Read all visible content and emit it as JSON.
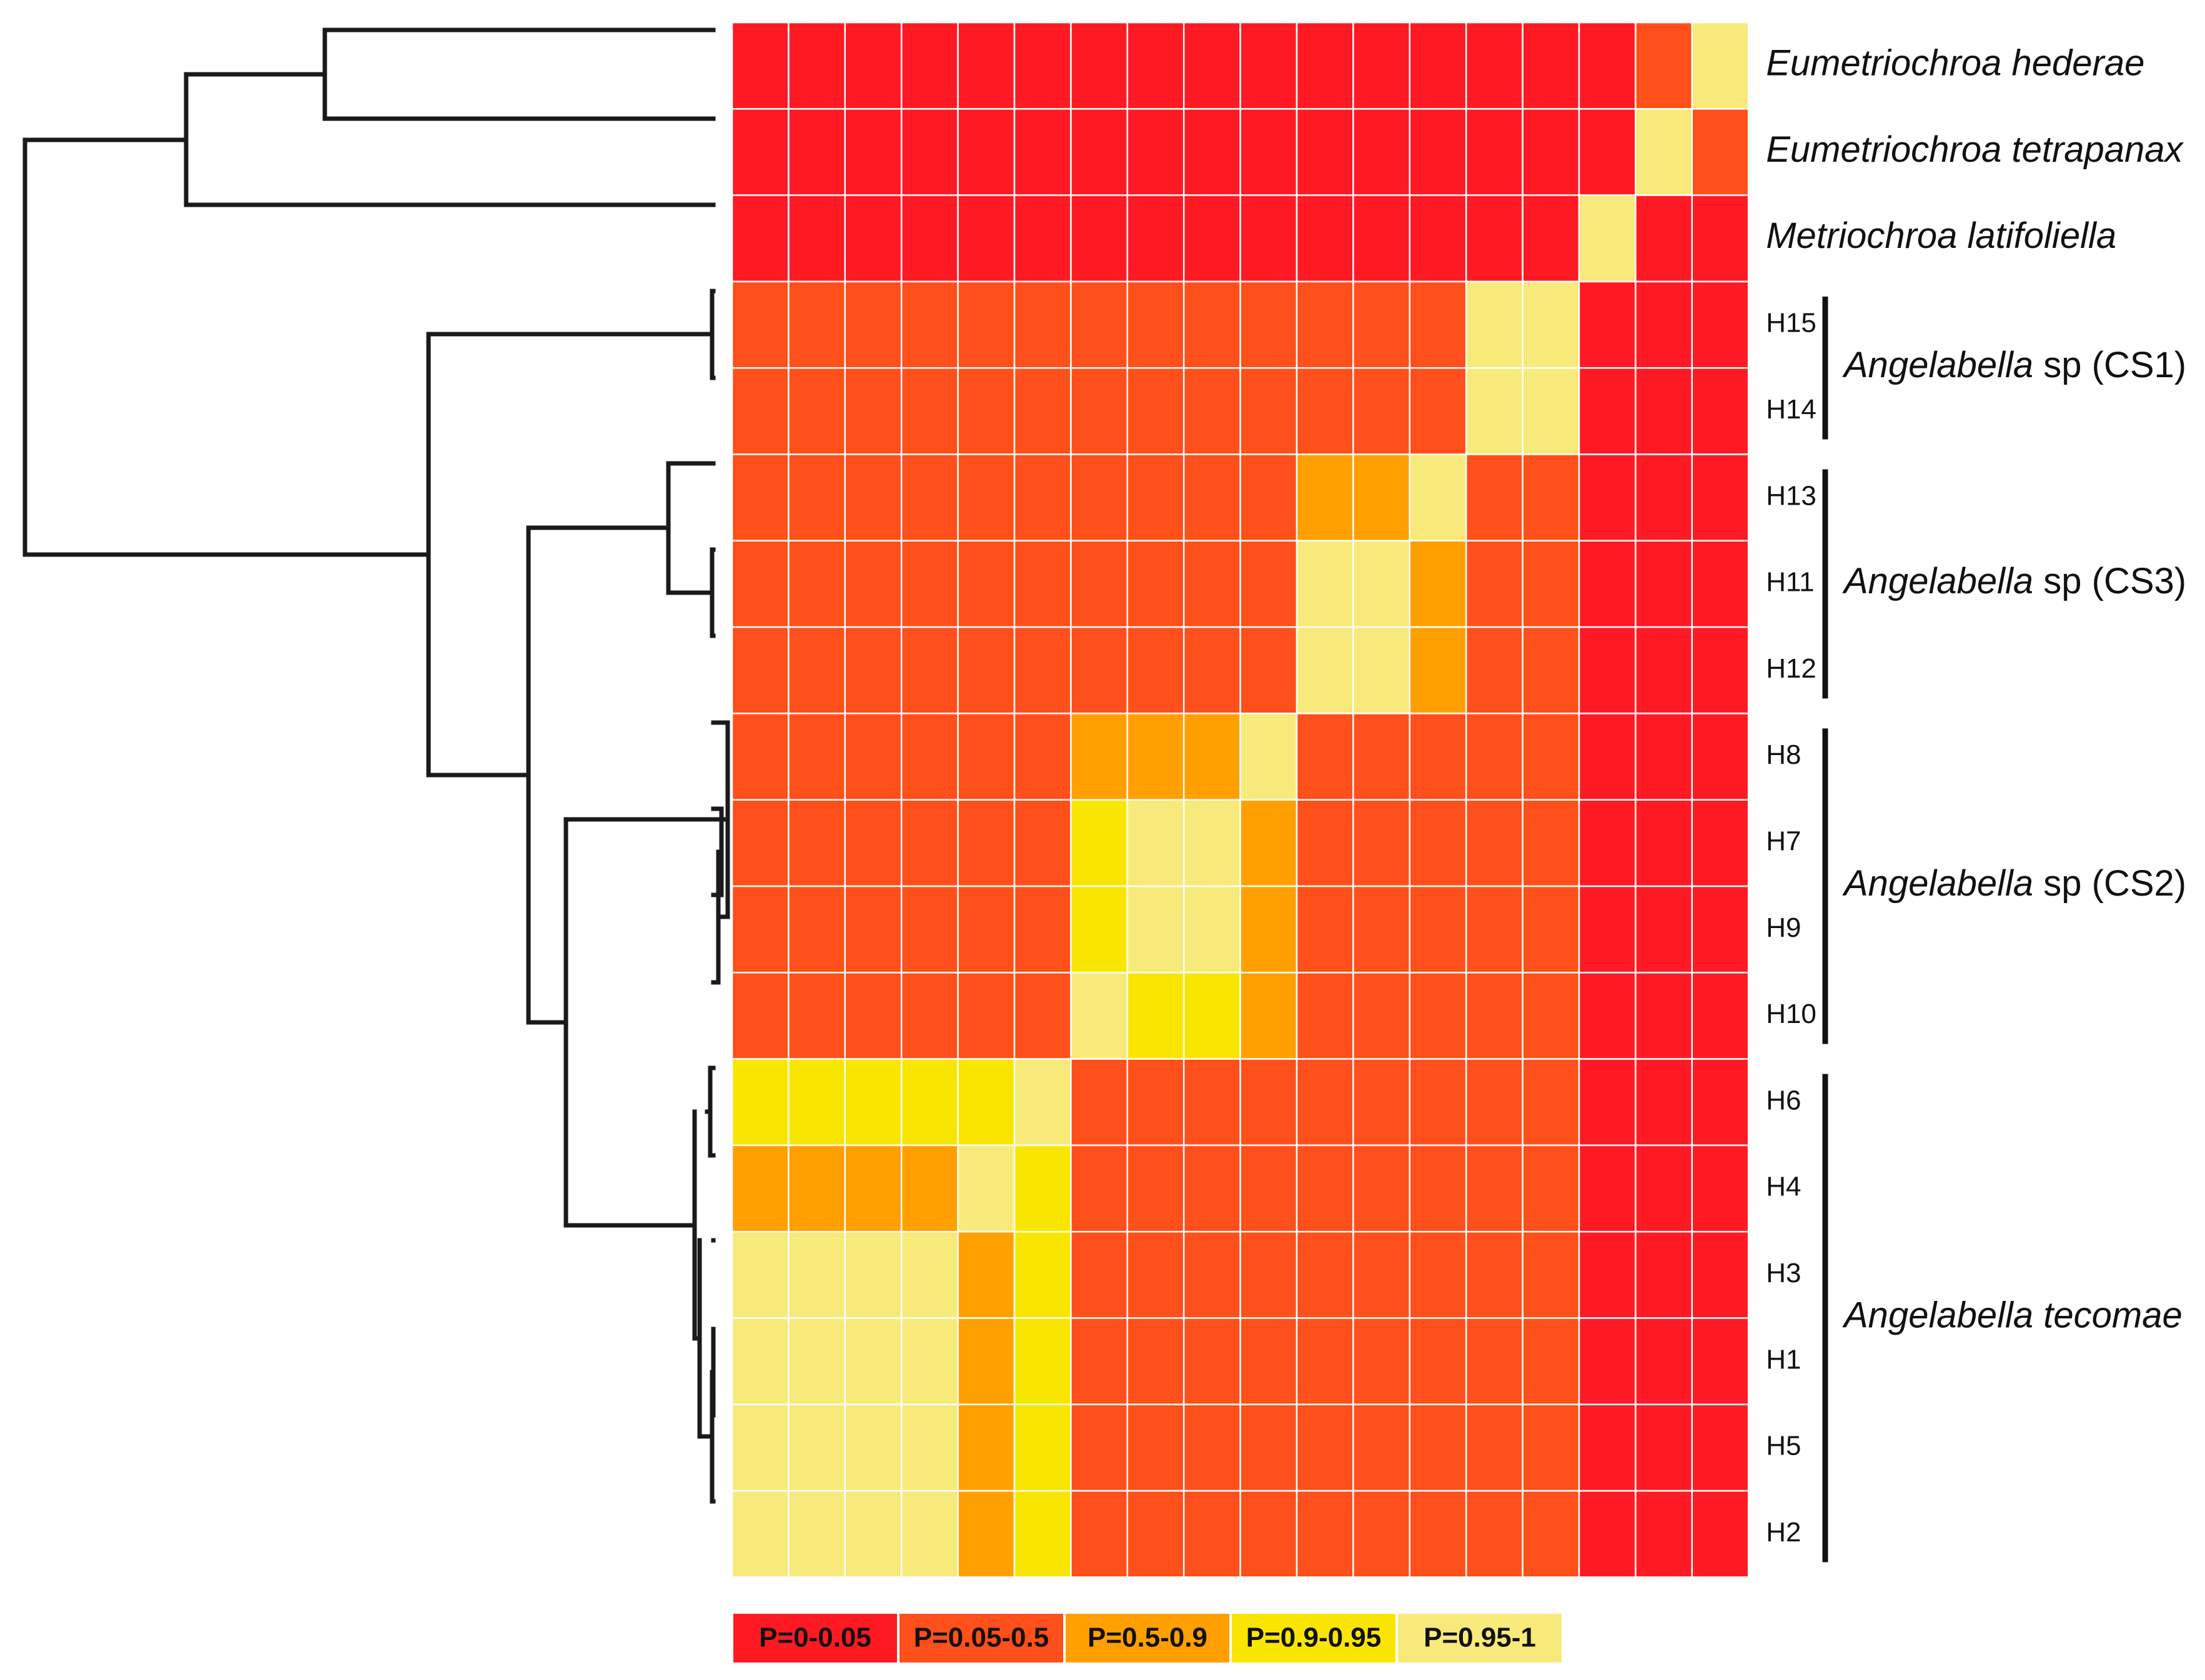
{
  "chart_data": {
    "type": "heatmap",
    "title": "",
    "colors": {
      "0": "#ff1a23",
      "1": "#ff4f1a",
      "2": "#ffa000",
      "3": "#f9e600",
      "4": "#f8ea7a"
    },
    "legend": [
      {
        "class": 0,
        "label": "P=0-0.05"
      },
      {
        "class": 1,
        "label": "P=0.05-0.5"
      },
      {
        "class": 2,
        "label": "P=0.5-0.9"
      },
      {
        "class": 3,
        "label": "P=0.9-0.95"
      },
      {
        "class": 4,
        "label": "P=0.95-1"
      }
    ],
    "rows": [
      {
        "label": "",
        "species": "Eumetriochroa hederae"
      },
      {
        "label": "",
        "species": "Eumetriochroa tetrapanax"
      },
      {
        "label": "",
        "species": "Metriochroa latifoliella"
      },
      {
        "label": "H15"
      },
      {
        "label": "H14"
      },
      {
        "label": "H13"
      },
      {
        "label": "H11"
      },
      {
        "label": "H12"
      },
      {
        "label": "H8"
      },
      {
        "label": "H7"
      },
      {
        "label": "H9"
      },
      {
        "label": "H10"
      },
      {
        "label": "H6"
      },
      {
        "label": "H4"
      },
      {
        "label": "H3"
      },
      {
        "label": "H1"
      },
      {
        "label": "H5"
      },
      {
        "label": "H2"
      }
    ],
    "matrix": [
      [
        0,
        0,
        0,
        0,
        0,
        0,
        0,
        0,
        0,
        0,
        0,
        0,
        0,
        0,
        0,
        0,
        1,
        4
      ],
      [
        0,
        0,
        0,
        0,
        0,
        0,
        0,
        0,
        0,
        0,
        0,
        0,
        0,
        0,
        0,
        0,
        4,
        1
      ],
      [
        0,
        0,
        0,
        0,
        0,
        0,
        0,
        0,
        0,
        0,
        0,
        0,
        0,
        0,
        0,
        4,
        0,
        0
      ],
      [
        1,
        1,
        1,
        1,
        1,
        1,
        1,
        1,
        1,
        1,
        1,
        1,
        1,
        4,
        4,
        0,
        0,
        0
      ],
      [
        1,
        1,
        1,
        1,
        1,
        1,
        1,
        1,
        1,
        1,
        1,
        1,
        1,
        4,
        4,
        0,
        0,
        0
      ],
      [
        1,
        1,
        1,
        1,
        1,
        1,
        1,
        1,
        1,
        1,
        2,
        2,
        4,
        1,
        1,
        0,
        0,
        0
      ],
      [
        1,
        1,
        1,
        1,
        1,
        1,
        1,
        1,
        1,
        1,
        4,
        4,
        2,
        1,
        1,
        0,
        0,
        0
      ],
      [
        1,
        1,
        1,
        1,
        1,
        1,
        1,
        1,
        1,
        1,
        4,
        4,
        2,
        1,
        1,
        0,
        0,
        0
      ],
      [
        1,
        1,
        1,
        1,
        1,
        1,
        2,
        2,
        2,
        4,
        1,
        1,
        1,
        1,
        1,
        0,
        0,
        0
      ],
      [
        1,
        1,
        1,
        1,
        1,
        1,
        3,
        4,
        4,
        2,
        1,
        1,
        1,
        1,
        1,
        0,
        0,
        0
      ],
      [
        1,
        1,
        1,
        1,
        1,
        1,
        3,
        4,
        4,
        2,
        1,
        1,
        1,
        1,
        1,
        0,
        0,
        0
      ],
      [
        1,
        1,
        1,
        1,
        1,
        1,
        4,
        3,
        3,
        2,
        1,
        1,
        1,
        1,
        1,
        0,
        0,
        0
      ],
      [
        3,
        3,
        3,
        3,
        3,
        4,
        1,
        1,
        1,
        1,
        1,
        1,
        1,
        1,
        1,
        0,
        0,
        0
      ],
      [
        2,
        2,
        2,
        2,
        4,
        3,
        1,
        1,
        1,
        1,
        1,
        1,
        1,
        1,
        1,
        0,
        0,
        0
      ],
      [
        4,
        4,
        4,
        4,
        2,
        3,
        1,
        1,
        1,
        1,
        1,
        1,
        1,
        1,
        1,
        0,
        0,
        0
      ],
      [
        4,
        4,
        4,
        4,
        2,
        3,
        1,
        1,
        1,
        1,
        1,
        1,
        1,
        1,
        1,
        0,
        0,
        0
      ],
      [
        4,
        4,
        4,
        4,
        2,
        3,
        1,
        1,
        1,
        1,
        1,
        1,
        1,
        1,
        1,
        0,
        0,
        0
      ],
      [
        4,
        4,
        4,
        4,
        2,
        3,
        1,
        1,
        1,
        1,
        1,
        1,
        1,
        1,
        1,
        0,
        0,
        0
      ]
    ],
    "clusters": [
      {
        "genus": "Angelabella",
        "epithet": "sp (CS1)",
        "rows": [
          "H15",
          "H14"
        ]
      },
      {
        "genus": "Angelabella",
        "epithet": "sp (CS3)",
        "rows": [
          "H13",
          "H11",
          "H12"
        ]
      },
      {
        "genus": "Angelabella",
        "epithet": "sp (CS2)",
        "rows": [
          "H8",
          "H7",
          "H9",
          "H10"
        ]
      },
      {
        "genus": "Angelabella tecomae",
        "epithet": "",
        "rows": [
          "H6",
          "H4",
          "H3",
          "H1",
          "H5",
          "H2"
        ]
      }
    ]
  }
}
